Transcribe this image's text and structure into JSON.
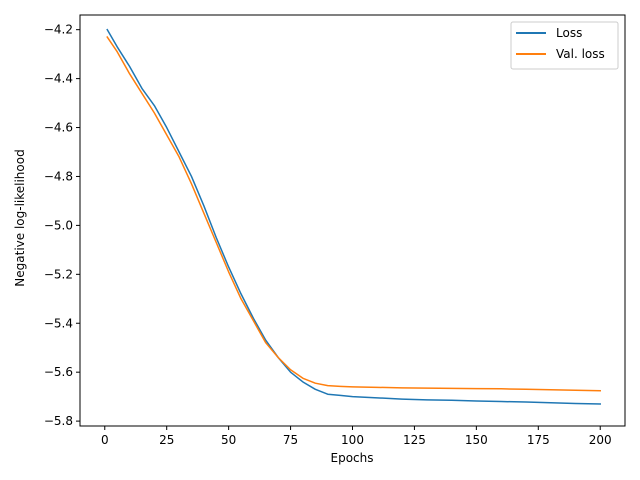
{
  "chart_data": {
    "type": "line",
    "title": "",
    "xlabel": "Epochs",
    "ylabel": "Negative log-likelihood",
    "xlim": [
      -10,
      210
    ],
    "ylim": [
      -5.82,
      -4.14
    ],
    "xticks": [
      0,
      25,
      50,
      75,
      100,
      125,
      150,
      175,
      200
    ],
    "yticks": [
      -5.8,
      -5.6,
      -5.4,
      -5.2,
      -5.0,
      -4.8,
      -4.6,
      -4.4,
      -4.2
    ],
    "ytick_labels": [
      "−5.8",
      "−5.6",
      "−5.4",
      "−5.2",
      "−5.0",
      "−4.8",
      "−4.6",
      "−4.4",
      "−4.2"
    ],
    "grid": false,
    "legend_position": "top-right",
    "series": [
      {
        "name": "Loss",
        "color": "#1f77b4",
        "x": [
          1,
          5,
          10,
          15,
          20,
          25,
          30,
          35,
          40,
          45,
          50,
          55,
          60,
          65,
          70,
          75,
          80,
          85,
          90,
          95,
          100,
          110,
          120,
          130,
          140,
          150,
          160,
          170,
          180,
          190,
          200
        ],
        "y": [
          -4.2,
          -4.27,
          -4.35,
          -4.44,
          -4.51,
          -4.6,
          -4.7,
          -4.8,
          -4.92,
          -5.05,
          -5.17,
          -5.28,
          -5.38,
          -5.47,
          -5.54,
          -5.6,
          -5.64,
          -5.67,
          -5.69,
          -5.695,
          -5.7,
          -5.705,
          -5.71,
          -5.713,
          -5.715,
          -5.718,
          -5.72,
          -5.722,
          -5.725,
          -5.728,
          -5.73
        ]
      },
      {
        "name": "Val. loss",
        "color": "#ff7f0e",
        "x": [
          1,
          5,
          10,
          15,
          20,
          25,
          30,
          35,
          40,
          45,
          50,
          55,
          60,
          65,
          70,
          75,
          80,
          85,
          90,
          95,
          100,
          110,
          120,
          130,
          140,
          150,
          160,
          170,
          180,
          190,
          200
        ],
        "y": [
          -4.23,
          -4.29,
          -4.38,
          -4.46,
          -4.54,
          -4.63,
          -4.72,
          -4.83,
          -4.95,
          -5.07,
          -5.19,
          -5.3,
          -5.39,
          -5.48,
          -5.54,
          -5.59,
          -5.625,
          -5.645,
          -5.655,
          -5.658,
          -5.66,
          -5.662,
          -5.664,
          -5.665,
          -5.666,
          -5.667,
          -5.668,
          -5.67,
          -5.672,
          -5.674,
          -5.676
        ]
      }
    ]
  }
}
